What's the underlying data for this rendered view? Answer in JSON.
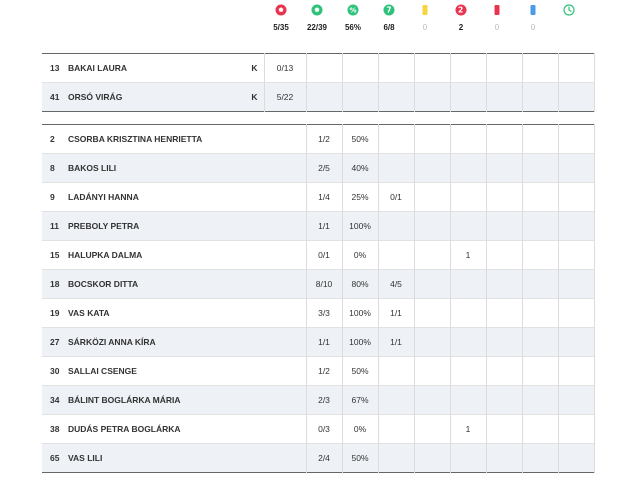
{
  "header": {
    "columns": [
      {
        "icon": "goal-ball-red-icon",
        "value": "5/35"
      },
      {
        "icon": "goal-ball-green-icon",
        "value": "22/39"
      },
      {
        "icon": "percent-icon",
        "value": "56%"
      },
      {
        "icon": "seven-meter-icon",
        "value": "6/8"
      },
      {
        "icon": "yellow-card-icon",
        "value": "0"
      },
      {
        "icon": "two-minute-icon",
        "value": "2"
      },
      {
        "icon": "red-card-icon",
        "value": "0"
      },
      {
        "icon": "blue-card-icon",
        "value": "0"
      },
      {
        "icon": "clock-icon",
        "value": ""
      }
    ]
  },
  "goalkeepers": [
    {
      "num": "13",
      "name": "BAKAI LAURA",
      "pos": "K",
      "saves": "0/13"
    },
    {
      "num": "41",
      "name": "ORSÓ VIRÁG",
      "pos": "K",
      "saves": "5/22"
    }
  ],
  "players": [
    {
      "num": "2",
      "name": "CSORBA KRISZTINA HENRIETTA",
      "goals": "1/2",
      "pct": "50%",
      "seven": "",
      "yellow": "",
      "twomin": "",
      "red": "",
      "blue": "",
      "time": ""
    },
    {
      "num": "8",
      "name": "BAKOS LILI",
      "goals": "2/5",
      "pct": "40%",
      "seven": "",
      "yellow": "",
      "twomin": "",
      "red": "",
      "blue": "",
      "time": ""
    },
    {
      "num": "9",
      "name": "LADÁNYI HANNA",
      "goals": "1/4",
      "pct": "25%",
      "seven": "0/1",
      "yellow": "",
      "twomin": "",
      "red": "",
      "blue": "",
      "time": ""
    },
    {
      "num": "11",
      "name": "PREBOLY PETRA",
      "goals": "1/1",
      "pct": "100%",
      "seven": "",
      "yellow": "",
      "twomin": "",
      "red": "",
      "blue": "",
      "time": ""
    },
    {
      "num": "15",
      "name": "HALUPKA DALMA",
      "goals": "0/1",
      "pct": "0%",
      "seven": "",
      "yellow": "",
      "twomin": "1",
      "red": "",
      "blue": "",
      "time": ""
    },
    {
      "num": "18",
      "name": "BOCSKOR DITTA",
      "goals": "8/10",
      "pct": "80%",
      "seven": "4/5",
      "yellow": "",
      "twomin": "",
      "red": "",
      "blue": "",
      "time": ""
    },
    {
      "num": "19",
      "name": "VAS KATA",
      "goals": "3/3",
      "pct": "100%",
      "seven": "1/1",
      "yellow": "",
      "twomin": "",
      "red": "",
      "blue": "",
      "time": ""
    },
    {
      "num": "27",
      "name": "SÁRKÖZI ANNA KÍRA",
      "goals": "1/1",
      "pct": "100%",
      "seven": "1/1",
      "yellow": "",
      "twomin": "",
      "red": "",
      "blue": "",
      "time": ""
    },
    {
      "num": "30",
      "name": "SALLAI CSENGE",
      "goals": "1/2",
      "pct": "50%",
      "seven": "",
      "yellow": "",
      "twomin": "",
      "red": "",
      "blue": "",
      "time": ""
    },
    {
      "num": "34",
      "name": "BÁLINT BOGLÁRKA MÁRIA",
      "goals": "2/3",
      "pct": "67%",
      "seven": "",
      "yellow": "",
      "twomin": "",
      "red": "",
      "blue": "",
      "time": ""
    },
    {
      "num": "38",
      "name": "DUDÁS PETRA BOGLÁRKA",
      "goals": "0/3",
      "pct": "0%",
      "seven": "",
      "yellow": "",
      "twomin": "1",
      "red": "",
      "blue": "",
      "time": ""
    },
    {
      "num": "65",
      "name": "VAS LILI",
      "goals": "2/4",
      "pct": "50%",
      "seven": "",
      "yellow": "",
      "twomin": "",
      "red": "",
      "blue": "",
      "time": ""
    }
  ],
  "colors": {
    "red": "#e8344e",
    "green": "#2fc27a",
    "yellow": "#f5d63d",
    "blue": "#4a9be8",
    "row_alt": "#eef1f6"
  }
}
